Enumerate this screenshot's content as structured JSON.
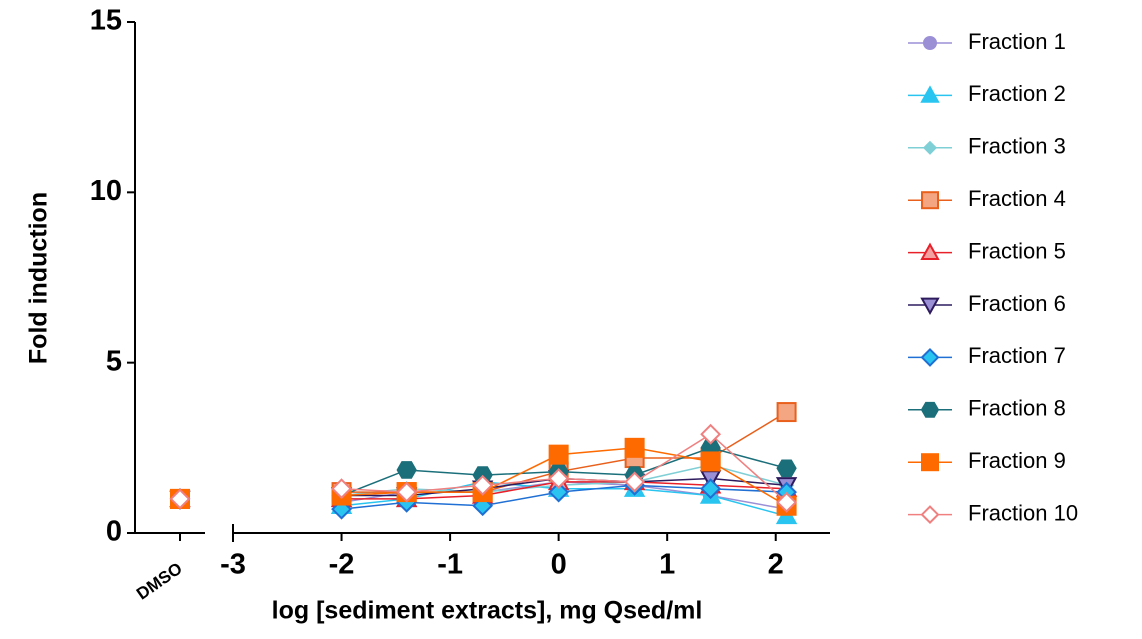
{
  "chart_data": {
    "type": "scatter",
    "x_label": "log [sediment extracts], mg Qsed/ml",
    "y_label": "Fold induction",
    "control_label": "DMSO",
    "x": [
      -2,
      -1.4,
      -0.7,
      0,
      0.7,
      1.4,
      2.1
    ],
    "xlim": [
      -3,
      2.5
    ],
    "xticks": [
      -3,
      -2,
      -1,
      0,
      1,
      2
    ],
    "ylim": [
      0,
      15
    ],
    "yticks": [
      0,
      5,
      10,
      15
    ],
    "series": [
      {
        "name": "Fraction 1",
        "color": "#9b8fd6",
        "fill": "#9b8fd6",
        "marker": "circle",
        "control": 1.0,
        "values": [
          0.9,
          1.2,
          1.2,
          1.5,
          1.4,
          1.1,
          0.7
        ]
      },
      {
        "name": "Fraction 2",
        "color": "#29c5f0",
        "fill": "#29c5f0",
        "marker": "triangle",
        "control": 1.0,
        "values": [
          0.8,
          1.0,
          1.5,
          1.3,
          1.3,
          1.1,
          0.5
        ]
      },
      {
        "name": "Fraction 3",
        "color": "#7fcfd6",
        "fill": "#7fcfd6",
        "marker": "diamond-small",
        "control": 1.0,
        "values": [
          1.1,
          1.3,
          1.2,
          1.4,
          1.5,
          2.0,
          1.4
        ]
      },
      {
        "name": "Fraction 4",
        "color": "#e8601c",
        "fill": "#f4a582",
        "marker": "square",
        "control": 1.0,
        "values": [
          1.2,
          1.2,
          1.2,
          1.8,
          2.2,
          2.2,
          3.55
        ]
      },
      {
        "name": "Fraction 5",
        "color": "#e8202a",
        "fill": "#f4a0a0",
        "marker": "triangle",
        "control": 1.0,
        "values": [
          1.0,
          1.0,
          1.1,
          1.5,
          1.5,
          1.4,
          1.3
        ]
      },
      {
        "name": "Fraction 6",
        "color": "#2d1b5e",
        "fill": "#9b8fd6",
        "marker": "triangle-down",
        "control": 1.0,
        "values": [
          1.1,
          1.1,
          1.3,
          1.6,
          1.5,
          1.6,
          1.4
        ]
      },
      {
        "name": "Fraction 7",
        "color": "#1f6fd4",
        "fill": "#29c5f0",
        "marker": "diamond",
        "control": 1.0,
        "values": [
          0.7,
          0.9,
          0.8,
          1.2,
          1.4,
          1.3,
          1.2
        ]
      },
      {
        "name": "Fraction 8",
        "color": "#1b6f7a",
        "fill": "#1b6f7a",
        "marker": "hexagon",
        "control": 1.0,
        "values": [
          1.1,
          1.85,
          1.7,
          1.8,
          1.7,
          2.5,
          1.9
        ]
      },
      {
        "name": "Fraction 9",
        "color": "#ff6a00",
        "fill": "#ff6a00",
        "marker": "square",
        "control": 1.0,
        "values": [
          1.1,
          1.2,
          1.2,
          2.3,
          2.5,
          2.1,
          0.8
        ]
      },
      {
        "name": "Fraction 10",
        "color": "#f08080",
        "fill": "#ffffff",
        "marker": "diamond",
        "control": 1.0,
        "values": [
          1.3,
          1.2,
          1.4,
          1.6,
          1.5,
          2.9,
          0.9
        ]
      }
    ]
  }
}
